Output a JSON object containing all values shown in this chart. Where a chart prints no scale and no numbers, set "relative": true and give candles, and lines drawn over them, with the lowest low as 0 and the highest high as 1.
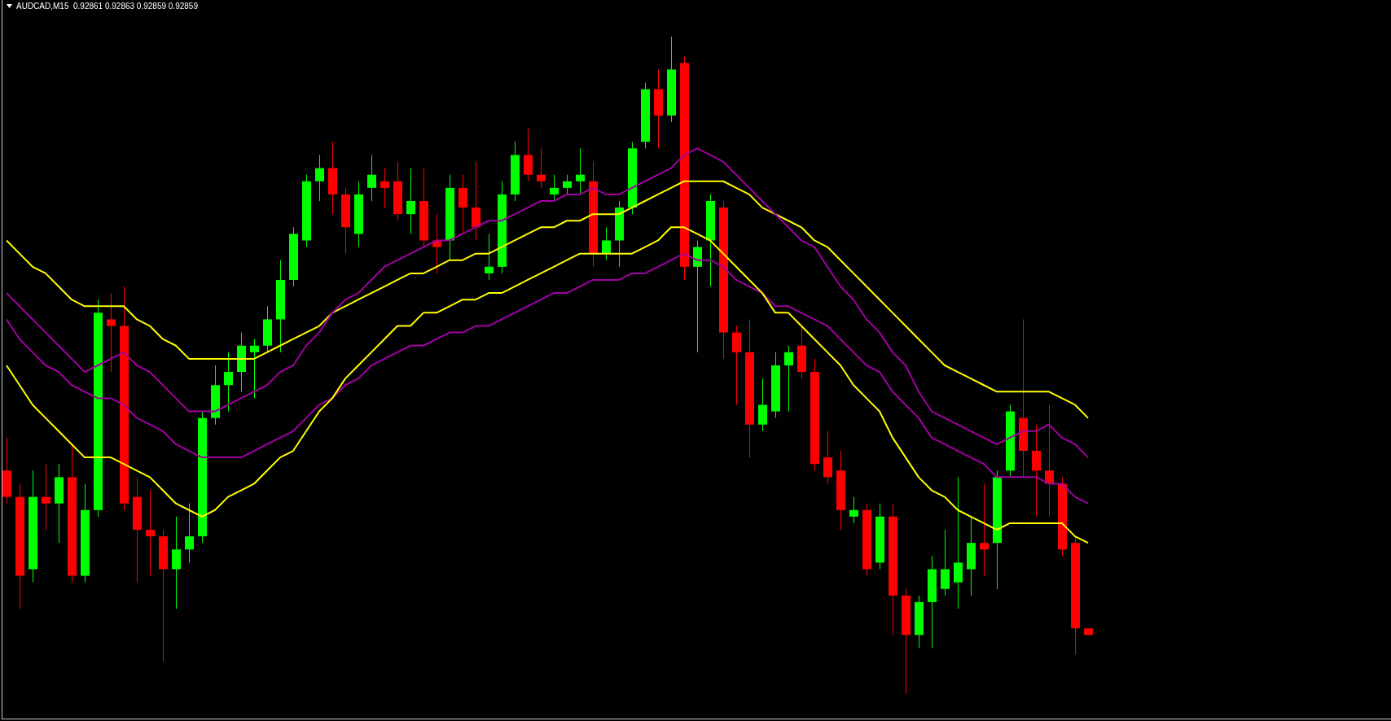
{
  "chart_data": {
    "type": "candlestick",
    "title": "AUDCAD,M15  0.92861 0.92863 0.92859 0.92859",
    "relative": true,
    "categories": [
      null,
      null,
      null,
      null,
      null,
      null,
      null,
      null,
      null,
      null,
      null,
      null,
      null,
      null,
      null,
      null,
      null,
      null,
      null,
      null,
      null,
      null,
      null,
      null,
      null,
      null,
      null,
      null,
      null,
      null,
      null,
      null,
      null,
      null,
      null,
      null,
      null,
      null,
      null,
      null,
      null,
      null,
      null,
      null,
      null,
      null,
      null,
      null,
      null,
      null,
      null,
      null,
      null,
      null,
      null,
      null,
      null,
      null,
      null,
      null,
      null,
      null,
      null,
      null,
      null,
      null,
      null,
      null,
      null,
      null,
      null,
      null,
      null,
      null,
      null,
      null,
      null,
      null,
      null,
      null,
      null,
      null,
      null,
      null
    ],
    "ohlc": [
      [
        0.34,
        0.39,
        0.29,
        0.3
      ],
      [
        0.3,
        0.32,
        0.13,
        0.18
      ],
      [
        0.19,
        0.34,
        0.17,
        0.3
      ],
      [
        0.3,
        0.35,
        0.25,
        0.29
      ],
      [
        0.29,
        0.35,
        0.23,
        0.33
      ],
      [
        0.33,
        0.38,
        0.17,
        0.18
      ],
      [
        0.18,
        0.32,
        0.17,
        0.28
      ],
      [
        0.28,
        0.6,
        0.27,
        0.58
      ],
      [
        0.57,
        0.61,
        0.49,
        0.56
      ],
      [
        0.56,
        0.62,
        0.28,
        0.29
      ],
      [
        0.3,
        0.33,
        0.17,
        0.25
      ],
      [
        0.25,
        0.31,
        0.18,
        0.24
      ],
      [
        0.24,
        0.25,
        0.05,
        0.19
      ],
      [
        0.19,
        0.27,
        0.13,
        0.22
      ],
      [
        0.22,
        0.29,
        0.2,
        0.24
      ],
      [
        0.24,
        0.43,
        0.23,
        0.42
      ],
      [
        0.42,
        0.5,
        0.41,
        0.47
      ],
      [
        0.47,
        0.52,
        0.43,
        0.49
      ],
      [
        0.49,
        0.55,
        0.46,
        0.53
      ],
      [
        0.52,
        0.54,
        0.45,
        0.53
      ],
      [
        0.53,
        0.59,
        0.52,
        0.57
      ],
      [
        0.57,
        0.66,
        0.52,
        0.63
      ],
      [
        0.63,
        0.71,
        0.62,
        0.7
      ],
      [
        0.69,
        0.79,
        0.68,
        0.78
      ],
      [
        0.78,
        0.82,
        0.75,
        0.8
      ],
      [
        0.8,
        0.84,
        0.73,
        0.76
      ],
      [
        0.76,
        0.77,
        0.67,
        0.71
      ],
      [
        0.7,
        0.78,
        0.68,
        0.76
      ],
      [
        0.77,
        0.82,
        0.75,
        0.79
      ],
      [
        0.78,
        0.8,
        0.74,
        0.77
      ],
      [
        0.78,
        0.81,
        0.72,
        0.73
      ],
      [
        0.73,
        0.8,
        0.7,
        0.75
      ],
      [
        0.75,
        0.8,
        0.68,
        0.69
      ],
      [
        0.69,
        0.73,
        0.64,
        0.68
      ],
      [
        0.69,
        0.79,
        0.66,
        0.77
      ],
      [
        0.77,
        0.79,
        0.7,
        0.74
      ],
      [
        0.74,
        0.81,
        0.69,
        0.71
      ],
      [
        0.64,
        0.7,
        0.63,
        0.65
      ],
      [
        0.65,
        0.78,
        0.64,
        0.76
      ],
      [
        0.76,
        0.84,
        0.75,
        0.82
      ],
      [
        0.82,
        0.86,
        0.78,
        0.79
      ],
      [
        0.79,
        0.83,
        0.77,
        0.78
      ],
      [
        0.76,
        0.79,
        0.75,
        0.77
      ],
      [
        0.77,
        0.79,
        0.76,
        0.78
      ],
      [
        0.78,
        0.83,
        0.76,
        0.79
      ],
      [
        0.78,
        0.81,
        0.65,
        0.67
      ],
      [
        0.67,
        0.71,
        0.66,
        0.69
      ],
      [
        0.69,
        0.75,
        0.65,
        0.74
      ],
      [
        0.74,
        0.84,
        0.73,
        0.83
      ],
      [
        0.84,
        0.93,
        0.83,
        0.92
      ],
      [
        0.92,
        0.95,
        0.83,
        0.88
      ],
      [
        0.88,
        1,
        0.87,
        0.95
      ],
      [
        0.96,
        0.97,
        0.63,
        0.65
      ],
      [
        0.65,
        0.69,
        0.52,
        0.68
      ],
      [
        0.69,
        0.76,
        0.62,
        0.75
      ],
      [
        0.74,
        0.75,
        0.51,
        0.55
      ],
      [
        0.55,
        0.56,
        0.44,
        0.52
      ],
      [
        0.52,
        0.57,
        0.36,
        0.41
      ],
      [
        0.41,
        0.48,
        0.4,
        0.44
      ],
      [
        0.43,
        0.52,
        0.42,
        0.5
      ],
      [
        0.5,
        0.53,
        0.43,
        0.52
      ],
      [
        0.53,
        0.56,
        0.48,
        0.49
      ],
      [
        0.49,
        0.51,
        0.34,
        0.35
      ],
      [
        0.36,
        0.4,
        0.32,
        0.33
      ],
      [
        0.34,
        0.37,
        0.25,
        0.28
      ],
      [
        0.27,
        0.3,
        0.26,
        0.28
      ],
      [
        0.28,
        0.29,
        0.18,
        0.19
      ],
      [
        0.2,
        0.29,
        0.19,
        0.27
      ],
      [
        0.27,
        0.29,
        0.09,
        0.15
      ],
      [
        0.15,
        0.16,
        0,
        0.09
      ],
      [
        0.09,
        0.15,
        0.07,
        0.14
      ],
      [
        0.14,
        0.21,
        0.07,
        0.19
      ],
      [
        0.16,
        0.25,
        0.15,
        0.19
      ],
      [
        0.17,
        0.33,
        0.13,
        0.2
      ],
      [
        0.19,
        0.27,
        0.15,
        0.23
      ],
      [
        0.23,
        0.32,
        0.18,
        0.22
      ],
      [
        0.23,
        0.34,
        0.16,
        0.33
      ],
      [
        0.34,
        0.44,
        0.33,
        0.43
      ],
      [
        0.42,
        0.57,
        0.33,
        0.37
      ],
      [
        0.37,
        0.41,
        0.27,
        0.34
      ],
      [
        0.34,
        0.44,
        0.27,
        0.32
      ],
      [
        0.32,
        0.33,
        0.21,
        0.22
      ],
      [
        0.23,
        0.24,
        0.06,
        0.1
      ],
      [
        0.1,
        0.1,
        0.09,
        0.09
      ]
    ],
    "colors": [
      "#ff0000",
      "#ff0000",
      "#00ff00",
      "#ff0000",
      "#00ff00",
      "#ff0000",
      "#00ff00",
      "#00ff00",
      "#ff0000",
      "#ff0000",
      "#ff0000",
      "#ff0000",
      "#ff0000",
      "#00ff00",
      "#00ff00",
      "#00ff00",
      "#00ff00",
      "#00ff00",
      "#00ff00",
      "#00ff00",
      "#00ff00",
      "#00ff00",
      "#00ff00",
      "#00ff00",
      "#00ff00",
      "#ff0000",
      "#ff0000",
      "#00ff00",
      "#00ff00",
      "#ff0000",
      "#ff0000",
      "#00ff00",
      "#ff0000",
      "#ff0000",
      "#00ff00",
      "#ff0000",
      "#ff0000",
      "#00ff00",
      "#00ff00",
      "#00ff00",
      "#ff0000",
      "#ff0000",
      "#00ff00",
      "#00ff00",
      "#00ff00",
      "#ff0000",
      "#00ff00",
      "#00ff00",
      "#00ff00",
      "#00ff00",
      "#ff0000",
      "#00ff00",
      "#ff0000",
      "#00ff00",
      "#00ff00",
      "#ff0000",
      "#ff0000",
      "#ff0000",
      "#00ff00",
      "#00ff00",
      "#00ff00",
      "#ff0000",
      "#ff0000",
      "#ff0000",
      "#ff0000",
      "#00ff00",
      "#ff0000",
      "#00ff00",
      "#ff0000",
      "#ff0000",
      "#00ff00",
      "#00ff00",
      "#00ff00",
      "#00ff00",
      "#00ff00",
      "#ff0000",
      "#00ff00",
      "#00ff00",
      "#ff0000",
      "#ff0000",
      "#ff0000",
      "#ff0000",
      "#ff0000",
      "#ff0000"
    ],
    "series": [
      {
        "type": "line",
        "color": "#ffff00",
        "values": [
          0.69,
          0.67,
          0.65,
          0.64,
          0.62,
          0.6,
          0.59,
          0.59,
          0.59,
          0.59,
          0.57,
          0.56,
          0.54,
          0.53,
          0.51,
          0.51,
          0.51,
          0.51,
          0.51,
          0.51,
          0.52,
          0.53,
          0.54,
          0.55,
          0.56,
          0.58,
          0.59,
          0.6,
          0.61,
          0.62,
          0.63,
          0.64,
          0.64,
          0.65,
          0.66,
          0.66,
          0.67,
          0.67,
          0.68,
          0.69,
          0.7,
          0.71,
          0.71,
          0.72,
          0.72,
          0.73,
          0.73,
          0.73,
          0.74,
          0.75,
          0.76,
          0.77,
          0.78,
          0.78,
          0.78,
          0.78,
          0.77,
          0.76,
          0.74,
          0.73,
          0.72,
          0.71,
          0.69,
          0.68,
          0.66,
          0.64,
          0.62,
          0.6,
          0.58,
          0.56,
          0.54,
          0.52,
          0.5,
          0.49,
          0.48,
          0.47,
          0.46,
          0.46,
          0.46,
          0.46,
          0.46,
          0.45,
          0.44,
          0.42
        ]
      },
      {
        "type": "line",
        "color": "#a000a0",
        "values": [
          0.61,
          0.59,
          0.57,
          0.55,
          0.53,
          0.51,
          0.49,
          0.5,
          0.51,
          0.52,
          0.5,
          0.49,
          0.47,
          0.45,
          0.43,
          0.43,
          0.43,
          0.44,
          0.45,
          0.46,
          0.47,
          0.49,
          0.5,
          0.53,
          0.55,
          0.58,
          0.6,
          0.61,
          0.63,
          0.65,
          0.66,
          0.67,
          0.68,
          0.69,
          0.69,
          0.7,
          0.71,
          0.72,
          0.72,
          0.73,
          0.74,
          0.75,
          0.75,
          0.76,
          0.76,
          0.77,
          0.76,
          0.76,
          0.77,
          0.78,
          0.79,
          0.8,
          0.82,
          0.83,
          0.82,
          0.81,
          0.79,
          0.77,
          0.75,
          0.73,
          0.71,
          0.69,
          0.68,
          0.65,
          0.62,
          0.6,
          0.57,
          0.55,
          0.52,
          0.5,
          0.46,
          0.43,
          0.42,
          0.41,
          0.4,
          0.39,
          0.38,
          0.39,
          0.4,
          0.4,
          0.41,
          0.39,
          0.38,
          0.36
        ]
      },
      {
        "type": "line",
        "color": "#a000a0",
        "values": [
          0.57,
          0.54,
          0.52,
          0.5,
          0.49,
          0.47,
          0.46,
          0.45,
          0.45,
          0.44,
          0.42,
          0.41,
          0.4,
          0.38,
          0.37,
          0.36,
          0.36,
          0.36,
          0.36,
          0.37,
          0.38,
          0.39,
          0.4,
          0.42,
          0.44,
          0.45,
          0.47,
          0.48,
          0.5,
          0.51,
          0.52,
          0.53,
          0.53,
          0.54,
          0.55,
          0.55,
          0.56,
          0.56,
          0.57,
          0.58,
          0.59,
          0.6,
          0.61,
          0.61,
          0.62,
          0.63,
          0.63,
          0.63,
          0.64,
          0.64,
          0.65,
          0.66,
          0.67,
          0.66,
          0.66,
          0.65,
          0.63,
          0.62,
          0.61,
          0.59,
          0.59,
          0.58,
          0.57,
          0.56,
          0.54,
          0.52,
          0.5,
          0.49,
          0.46,
          0.44,
          0.42,
          0.39,
          0.38,
          0.37,
          0.36,
          0.35,
          0.33,
          0.33,
          0.33,
          0.33,
          0.32,
          0.32,
          0.3,
          0.29
        ]
      },
      {
        "type": "line",
        "color": "#ffff00",
        "values": [
          0.5,
          0.47,
          0.44,
          0.42,
          0.4,
          0.38,
          0.36,
          0.36,
          0.36,
          0.35,
          0.34,
          0.33,
          0.31,
          0.29,
          0.28,
          0.27,
          0.28,
          0.3,
          0.31,
          0.32,
          0.34,
          0.36,
          0.37,
          0.4,
          0.43,
          0.45,
          0.48,
          0.5,
          0.52,
          0.54,
          0.56,
          0.56,
          0.58,
          0.58,
          0.59,
          0.6,
          0.6,
          0.61,
          0.61,
          0.62,
          0.63,
          0.64,
          0.65,
          0.66,
          0.67,
          0.67,
          0.67,
          0.67,
          0.67,
          0.68,
          0.69,
          0.71,
          0.71,
          0.7,
          0.69,
          0.67,
          0.65,
          0.63,
          0.61,
          0.58,
          0.58,
          0.56,
          0.54,
          0.52,
          0.5,
          0.47,
          0.45,
          0.43,
          0.39,
          0.36,
          0.33,
          0.31,
          0.3,
          0.28,
          0.27,
          0.26,
          0.25,
          0.26,
          0.26,
          0.26,
          0.26,
          0.26,
          0.24,
          0.23
        ]
      }
    ]
  }
}
